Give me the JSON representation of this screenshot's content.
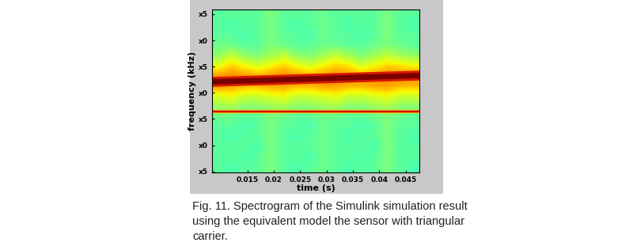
{
  "chart_data": {
    "type": "spectrogram",
    "xlabel": "time (s)",
    "ylabel": "frequency (kHz)",
    "xlim": [
      0.0083,
      0.0476
    ],
    "ylim": [
      4.8,
      35.9
    ],
    "xticks": [
      0.015,
      0.02,
      0.025,
      0.03,
      0.035,
      0.04,
      0.045
    ],
    "yticks": [
      {
        "value": 5,
        "label": "x5"
      },
      {
        "value": 10,
        "label": "x0"
      },
      {
        "value": 15,
        "label": "x5"
      },
      {
        "value": 20,
        "label": "x0"
      },
      {
        "value": 25,
        "label": "x5"
      },
      {
        "value": 30,
        "label": "x0"
      },
      {
        "value": 35,
        "label": "x5"
      }
    ],
    "cell_range": [
      0,
      10
    ],
    "cells": [
      [
        4.6,
        4.6,
        4.6,
        4.6,
        5.0,
        4.6,
        4.6,
        4.6,
        4.8,
        4.6,
        4.6,
        4.6,
        4.6,
        5.0,
        4.6,
        4.6
      ],
      [
        4.6,
        4.4,
        4.6,
        4.6,
        5.0,
        4.6,
        4.4,
        4.6,
        4.8,
        4.6,
        4.4,
        4.6,
        4.6,
        5.0,
        4.6,
        4.4
      ],
      [
        4.6,
        4.6,
        4.4,
        4.6,
        5.0,
        4.6,
        4.6,
        4.4,
        4.8,
        4.6,
        4.6,
        4.4,
        4.6,
        5.0,
        4.6,
        4.6
      ],
      [
        4.8,
        4.8,
        4.6,
        4.6,
        5.0,
        4.8,
        4.6,
        4.6,
        4.8,
        4.8,
        4.6,
        4.6,
        4.8,
        5.0,
        4.8,
        4.6
      ],
      [
        5.2,
        5.8,
        5.2,
        5.0,
        5.4,
        5.8,
        5.2,
        5.0,
        5.4,
        5.8,
        5.4,
        5.0,
        5.4,
        5.8,
        5.4,
        5.2
      ],
      [
        6.2,
        6.8,
        6.4,
        6.0,
        6.4,
        6.8,
        6.4,
        6.0,
        6.4,
        6.8,
        6.6,
        6.0,
        6.4,
        6.8,
        6.6,
        6.4
      ],
      [
        7.4,
        7.6,
        7.4,
        7.2,
        7.4,
        7.6,
        7.4,
        7.2,
        7.4,
        7.6,
        7.4,
        7.2,
        7.4,
        7.6,
        7.6,
        7.6
      ],
      [
        7.6,
        7.4,
        7.2,
        7.2,
        7.4,
        7.4,
        7.2,
        7.2,
        7.4,
        7.4,
        7.2,
        7.2,
        7.4,
        7.4,
        7.2,
        7.2
      ],
      [
        6.2,
        6.4,
        6.0,
        6.0,
        6.2,
        6.4,
        6.0,
        6.0,
        6.2,
        6.4,
        6.0,
        6.0,
        6.2,
        6.4,
        6.0,
        6.0
      ],
      [
        5.4,
        5.6,
        5.2,
        5.2,
        5.4,
        5.6,
        5.2,
        5.2,
        5.4,
        5.6,
        5.2,
        5.2,
        5.4,
        5.6,
        5.2,
        5.2
      ],
      [
        4.8,
        4.8,
        4.6,
        4.6,
        5.0,
        4.8,
        4.6,
        4.6,
        4.8,
        4.8,
        4.6,
        4.6,
        4.8,
        5.0,
        4.8,
        4.6
      ],
      [
        4.6,
        4.6,
        4.4,
        4.6,
        5.0,
        4.6,
        4.6,
        4.4,
        4.8,
        4.6,
        4.6,
        4.4,
        4.6,
        5.0,
        4.6,
        4.6
      ],
      [
        4.6,
        4.4,
        4.6,
        4.6,
        5.0,
        4.6,
        4.4,
        4.6,
        4.8,
        4.6,
        4.4,
        4.6,
        4.6,
        5.0,
        4.6,
        4.4
      ],
      [
        4.6,
        4.6,
        4.6,
        4.4,
        5.0,
        4.6,
        4.6,
        4.6,
        4.8,
        4.6,
        4.6,
        4.6,
        4.4,
        5.0,
        4.6,
        4.6
      ],
      [
        4.6,
        4.6,
        4.4,
        4.6,
        5.0,
        4.6,
        4.6,
        4.4,
        4.8,
        4.6,
        4.6,
        4.4,
        4.6,
        5.0,
        4.6,
        4.6
      ],
      [
        4.6,
        4.4,
        4.6,
        4.6,
        5.0,
        4.6,
        4.4,
        4.6,
        4.8,
        4.6,
        4.4,
        4.6,
        4.6,
        5.0,
        4.6,
        4.4
      ]
    ],
    "series": [
      {
        "color": "#7a0000",
        "x": [
          0.0083,
          0.0476
        ],
        "values": [
          22.1,
          23.3
        ]
      },
      {
        "color": "#cc0000",
        "x": [
          0.0083,
          0.0476
        ],
        "values": [
          16.5,
          16.5
        ]
      }
    ]
  },
  "caption": {
    "lines": [
      "Fig. 11. Spectrogram of the Simulink simulation result",
      "using the equivalent model the sensor with triangular",
      "carrier."
    ]
  }
}
